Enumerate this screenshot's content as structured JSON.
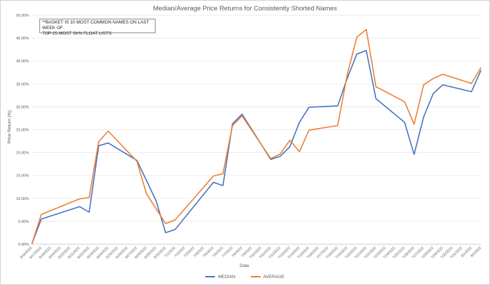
{
  "chart_data": {
    "type": "line",
    "title": "Median/Average Price Returns for Consistently Shorted Names",
    "annotation": [
      "**BASKET IS 10 MOST COMMON NAMES ON LAST WEEK OF",
      "TOP 25 MOST SI/% FLOAT LISTS"
    ],
    "xlabel": "Date",
    "ylabel": "Price Return (%)",
    "ylim": [
      0,
      0.5
    ],
    "y_ticks": [
      "0.00%",
      "5.00%",
      "10.00%",
      "15.00%",
      "20.00%",
      "25.00%",
      "30.00%",
      "35.00%",
      "40.00%",
      "45.00%",
      "50.00%"
    ],
    "grid": true,
    "legend_position": "bottom",
    "categories": [
      "6/16/2022",
      "6/17/2022",
      "6/18/2022",
      "6/19/2022",
      "6/20/2022",
      "6/21/2022",
      "6/22/2022",
      "6/23/2022",
      "6/24/2022",
      "6/25/2022",
      "6/26/2022",
      "6/27/2022",
      "6/28/2022",
      "6/29/2022",
      "6/30/2022",
      "7/1/2022",
      "7/2/2022",
      "7/3/2022",
      "7/4/2022",
      "7/5/2022",
      "7/6/2022",
      "7/7/2022",
      "7/8/2022",
      "7/9/2022",
      "7/10/2022",
      "7/11/2022",
      "7/12/2022",
      "7/13/2022",
      "7/14/2022",
      "7/15/2022",
      "7/16/2022",
      "7/17/2022",
      "7/18/2022",
      "7/19/2022",
      "7/20/2022",
      "7/21/2022",
      "7/22/2022",
      "7/23/2022",
      "7/24/2022",
      "7/25/2022",
      "7/26/2022",
      "7/27/2022",
      "7/28/2022",
      "7/29/2022",
      "7/30/2022",
      "7/31/2022",
      "8/1/2022",
      "8/2/2022"
    ],
    "series": [
      {
        "name": "MEDIAN",
        "color": "#4472C4",
        "x": [
          "6/16/2022",
          "6/17/2022",
          "6/21/2022",
          "6/22/2022",
          "6/23/2022",
          "6/24/2022",
          "6/27/2022",
          "6/29/2022",
          "6/30/2022",
          "7/1/2022",
          "7/5/2022",
          "7/6/2022",
          "7/7/2022",
          "7/8/2022",
          "7/11/2022",
          "7/12/2022",
          "7/13/2022",
          "7/14/2022",
          "7/15/2022",
          "7/18/2022",
          "7/19/2022",
          "7/20/2022",
          "7/21/2022",
          "7/22/2022",
          "7/25/2022",
          "7/26/2022",
          "7/27/2022",
          "7/28/2022",
          "7/29/2022",
          "8/1/2022",
          "8/2/2022"
        ],
        "values": [
          0.0,
          0.055,
          0.082,
          0.07,
          0.215,
          0.221,
          0.183,
          0.095,
          0.025,
          0.032,
          0.135,
          0.128,
          0.263,
          0.284,
          0.185,
          0.192,
          0.213,
          0.266,
          0.299,
          0.302,
          0.362,
          0.415,
          0.423,
          0.318,
          0.266,
          0.196,
          0.278,
          0.329,
          0.348,
          0.333,
          0.38
        ]
      },
      {
        "name": "AVERAGE",
        "color": "#ED7D31",
        "x": [
          "6/16/2022",
          "6/17/2022",
          "6/21/2022",
          "6/22/2022",
          "6/23/2022",
          "6/24/2022",
          "6/27/2022",
          "6/28/2022",
          "6/30/2022",
          "7/1/2022",
          "7/5/2022",
          "7/6/2022",
          "7/7/2022",
          "7/8/2022",
          "7/11/2022",
          "7/12/2022",
          "7/13/2022",
          "7/14/2022",
          "7/15/2022",
          "7/18/2022",
          "7/19/2022",
          "7/20/2022",
          "7/21/2022",
          "7/22/2022",
          "7/25/2022",
          "7/26/2022",
          "7/27/2022",
          "7/28/2022",
          "7/29/2022",
          "8/1/2022",
          "8/2/2022"
        ],
        "values": [
          0.0,
          0.065,
          0.099,
          0.102,
          0.224,
          0.247,
          0.181,
          0.11,
          0.045,
          0.053,
          0.149,
          0.154,
          0.259,
          0.28,
          0.187,
          0.197,
          0.227,
          0.202,
          0.249,
          0.259,
          0.37,
          0.452,
          0.469,
          0.344,
          0.311,
          0.262,
          0.348,
          0.362,
          0.371,
          0.351,
          0.386
        ]
      }
    ]
  }
}
